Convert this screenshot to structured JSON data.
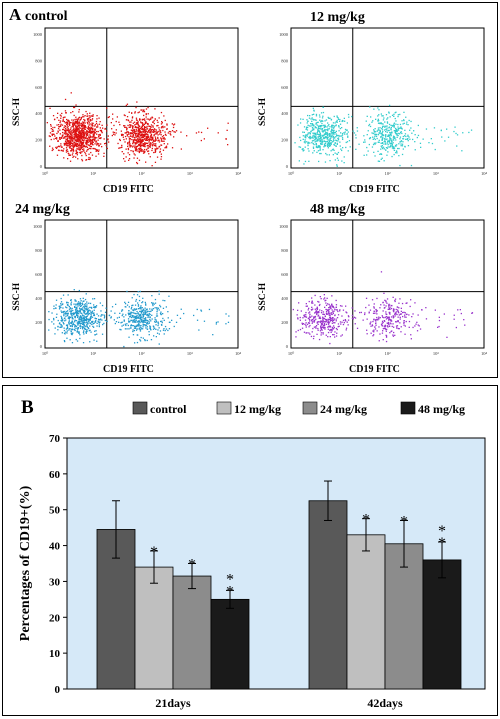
{
  "panel_a": {
    "label": "A",
    "xlabel": "CD19 FITC",
    "ylabel": "SSC-H",
    "y_ticks": [
      "1000",
      "800",
      "600",
      "400",
      "200",
      "0"
    ],
    "x_ticks": [
      "10⁰",
      "10¹",
      "10²",
      "10³",
      "10⁴"
    ],
    "plots": [
      {
        "title": "control",
        "color": "#dd1111",
        "density": 1.0
      },
      {
        "title": "12 mg/kg",
        "color": "#33cccc",
        "density": 0.55
      },
      {
        "title": "24 mg/kg",
        "color": "#2299cc",
        "density": 0.6
      },
      {
        "title": "48 mg/kg",
        "color": "#9933cc",
        "density": 0.4
      }
    ]
  },
  "chart_data": {
    "type": "bar",
    "panel_label": "B",
    "title": "",
    "xlabel": "",
    "ylabel": "Percentages of CD19+(%)",
    "ylim": [
      0,
      70
    ],
    "yticks": [
      0,
      10,
      20,
      30,
      40,
      50,
      60,
      70
    ],
    "categories": [
      "21days",
      "42days"
    ],
    "legend_position": "top",
    "series": [
      {
        "name": "control",
        "color": "#595959",
        "values": [
          44.5,
          52.5
        ],
        "errors": [
          8,
          5.5
        ],
        "sig": [
          "",
          ""
        ]
      },
      {
        "name": "12 mg/kg",
        "color": "#bfbfbf",
        "values": [
          34,
          43
        ],
        "errors": [
          4.5,
          4.5
        ],
        "sig": [
          "*",
          "*"
        ]
      },
      {
        "name": "24 mg/kg",
        "color": "#8c8c8c",
        "values": [
          31.5,
          40.5
        ],
        "errors": [
          3.5,
          6.5
        ],
        "sig": [
          "*",
          "*"
        ]
      },
      {
        "name": "48 mg/kg",
        "color": "#1a1a1a",
        "values": [
          25,
          36
        ],
        "errors": [
          2.5,
          5
        ],
        "sig": [
          "**",
          "**"
        ]
      }
    ]
  }
}
